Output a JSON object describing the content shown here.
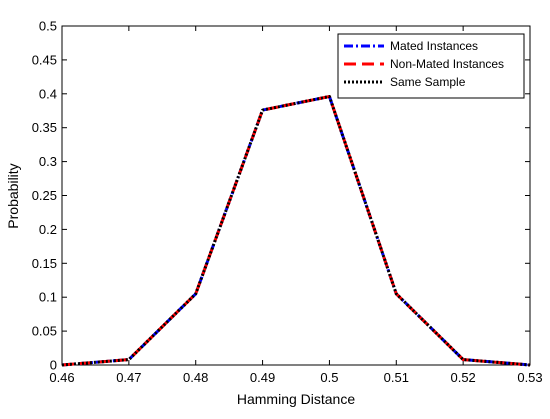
{
  "chart_data": {
    "type": "line",
    "xlabel": "Hamming Distance",
    "ylabel": "Probability",
    "xlim": [
      0.46,
      0.53
    ],
    "ylim": [
      0,
      0.5
    ],
    "x_ticks": [
      "0.46",
      "0.47",
      "0.48",
      "0.49",
      "0.5",
      "0.51",
      "0.52",
      "0.53"
    ],
    "y_ticks": [
      "0",
      "0.05",
      "0.1",
      "0.15",
      "0.2",
      "0.25",
      "0.3",
      "0.35",
      "0.4",
      "0.45",
      "0.5"
    ],
    "grid": false,
    "legend_position": "top-right",
    "series": [
      {
        "name": "Mated Instances",
        "color": "#0000ff",
        "style": "dash-dot",
        "x": [
          0.46,
          0.47,
          0.48,
          0.49,
          0.5,
          0.51,
          0.52,
          0.53
        ],
        "y": [
          0.0,
          0.008,
          0.105,
          0.376,
          0.396,
          0.105,
          0.008,
          0.0
        ]
      },
      {
        "name": "Non-Mated Instances",
        "color": "#ff0000",
        "style": "dash",
        "x": [
          0.46,
          0.47,
          0.48,
          0.49,
          0.5,
          0.51,
          0.52,
          0.53
        ],
        "y": [
          0.0,
          0.008,
          0.105,
          0.376,
          0.396,
          0.105,
          0.008,
          0.0
        ]
      },
      {
        "name": "Same Sample",
        "color": "#000000",
        "style": "dot",
        "x": [
          0.46,
          0.47,
          0.48,
          0.49,
          0.5,
          0.51,
          0.52,
          0.53
        ],
        "y": [
          0.0,
          0.008,
          0.105,
          0.376,
          0.396,
          0.105,
          0.008,
          0.0
        ]
      }
    ]
  }
}
